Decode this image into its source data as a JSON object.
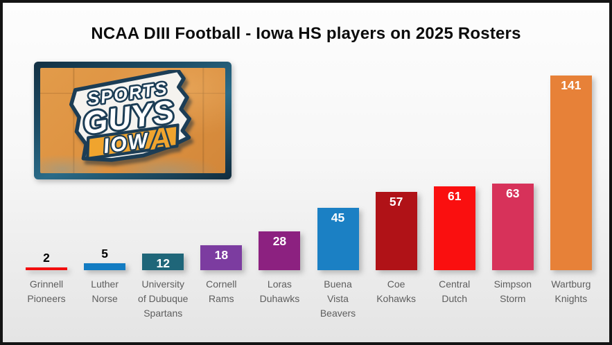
{
  "title": "NCAA DIII Football - Iowa HS players on 2025 Rosters",
  "logo": {
    "line1": "SPORTS",
    "line2": "GUYS",
    "line3_main": "IOW",
    "line3_accent": "A",
    "colors": {
      "navy_outline": "#1c3d55",
      "gold_accent": "#f0a42e",
      "wall_orange": "#dd9140",
      "state_white": "#f5f3ef"
    }
  },
  "chart_data": {
    "type": "bar",
    "title": "NCAA DIII Football - Iowa HS players on 2025 Rosters",
    "categories": [
      "Grinnell Pioneers",
      "Luther Norse",
      "University of Dubuque Spartans",
      "Cornell Rams",
      "Loras Duhawks",
      "Buena Vista Beavers",
      "Coe Kohawks",
      "Central Dutch",
      "Simpson Storm",
      "Wartburg Knights"
    ],
    "values": [
      2,
      5,
      12,
      18,
      28,
      45,
      57,
      61,
      63,
      141
    ],
    "bar_colors": [
      "#f20d0d",
      "#137cc2",
      "#1f6679",
      "#7c3ca0",
      "#8c2180",
      "#1b80c4",
      "#b01217",
      "#fa0f0f",
      "#d7325a",
      "#e78138"
    ],
    "value_label_color_inside": "#ffffff",
    "value_label_color_outside": "#000000",
    "category_label_color": "#5d5d5d",
    "xlabel": "",
    "ylabel": "",
    "ylim": [
      0,
      143
    ],
    "axes_visible": false,
    "grid": false,
    "legend": "none",
    "data_labels": true
  }
}
